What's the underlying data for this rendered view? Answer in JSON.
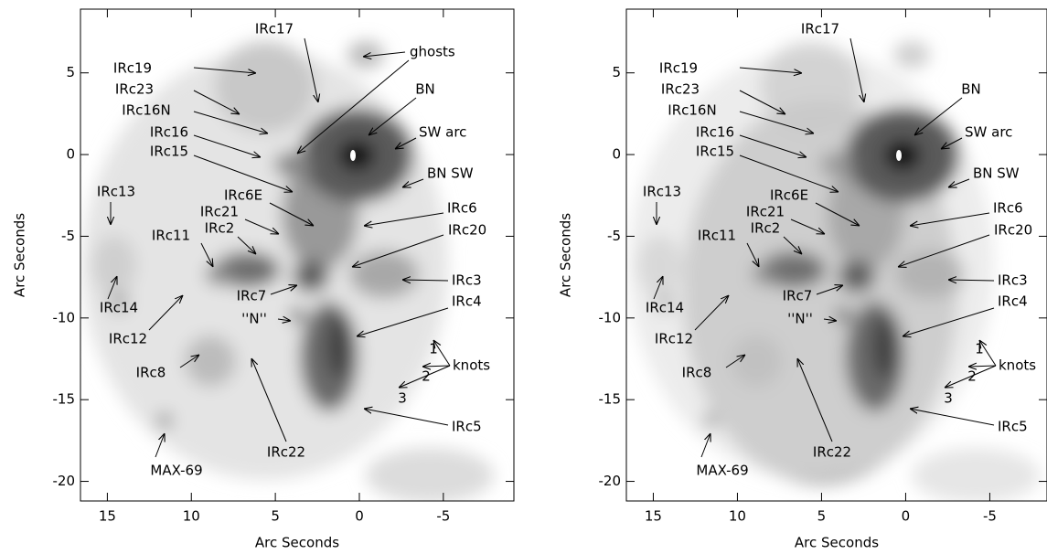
{
  "chart_data": [
    {
      "type": "image",
      "xlabel": "Arc Seconds",
      "ylabel": "Arc Seconds",
      "xlim": [
        16.6,
        -9.2
      ],
      "ylim": [
        -21.2,
        8.9
      ],
      "xticks": [
        15,
        10,
        5,
        0,
        -5
      ],
      "yticks": [
        5,
        0,
        -5,
        -10,
        -15,
        -20
      ],
      "annotations": [
        "IRc17",
        "ghosts",
        "IRc19",
        "IRc23",
        "IRc16N",
        "BN",
        "SW arc",
        "IRc16",
        "IRc15",
        "BN SW",
        "IRc13",
        "IRc6E",
        "IRc6",
        "IRc21",
        "IRc20",
        "IRc2",
        "IRc11",
        "IRc3",
        "IRc7",
        "IRc14",
        "IRc4",
        "IRc12",
        "''N''",
        "1",
        "2",
        "knots",
        "IRc8",
        "3",
        "IRc5",
        "IRc22",
        "MAX-69"
      ]
    },
    {
      "type": "image",
      "xlabel": "Arc Seconds",
      "ylabel": "Arc Seconds",
      "xlim": [
        16.6,
        -8.4
      ],
      "ylim": [
        -21.2,
        8.9
      ],
      "xticks": [
        15,
        10,
        5,
        0,
        -5
      ],
      "yticks": [
        5,
        0,
        -5,
        -10,
        -15,
        -20
      ],
      "annotations": [
        "IRc17",
        "IRc19",
        "IRc23",
        "IRc16N",
        "BN",
        "SW arc",
        "IRc16",
        "IRc15",
        "BN SW",
        "IRc13",
        "IRc6E",
        "IRc6",
        "IRc21",
        "IRc20",
        "IRc2",
        "IRc11",
        "IRc3",
        "IRc7",
        "IRc14",
        "IRc4",
        "IRc12",
        "''N''",
        "1",
        "2",
        "knots",
        "IRc8",
        "3",
        "IRc5",
        "IRc22",
        "MAX-69"
      ]
    }
  ]
}
